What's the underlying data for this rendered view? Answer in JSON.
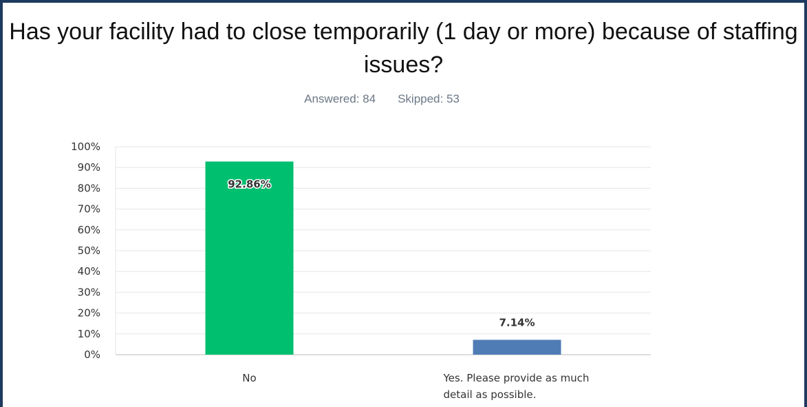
{
  "question_title": "Has your facility had to close temporarily (1 day or more) because of staffing issues?",
  "answered_label": "Answered: 84",
  "skipped_label": "Skipped: 53",
  "colors": {
    "bar_no": "#00bf6f",
    "bar_yes": "#507cb6",
    "gridline": "#e6e6e6",
    "axis": "#bdbdbd",
    "frame": "#1f3a5f"
  },
  "chart_data": {
    "type": "bar",
    "title": "Has your facility had to close temporarily (1 day or more) because of staffing issues?",
    "categories": [
      [
        "No"
      ],
      [
        "Yes. Please provide as much",
        "detail as possible."
      ]
    ],
    "values": [
      92.86,
      7.14
    ],
    "value_labels": [
      "92.86%",
      "7.14%"
    ],
    "bar_colors": [
      "#00bf6f",
      "#507cb6"
    ],
    "ylim": [
      0,
      100
    ],
    "yticks": [
      "0%",
      "10%",
      "20%",
      "30%",
      "40%",
      "50%",
      "60%",
      "70%",
      "80%",
      "90%",
      "100%"
    ],
    "xlabel": "",
    "ylabel": "",
    "grid": true,
    "legend": "none"
  }
}
